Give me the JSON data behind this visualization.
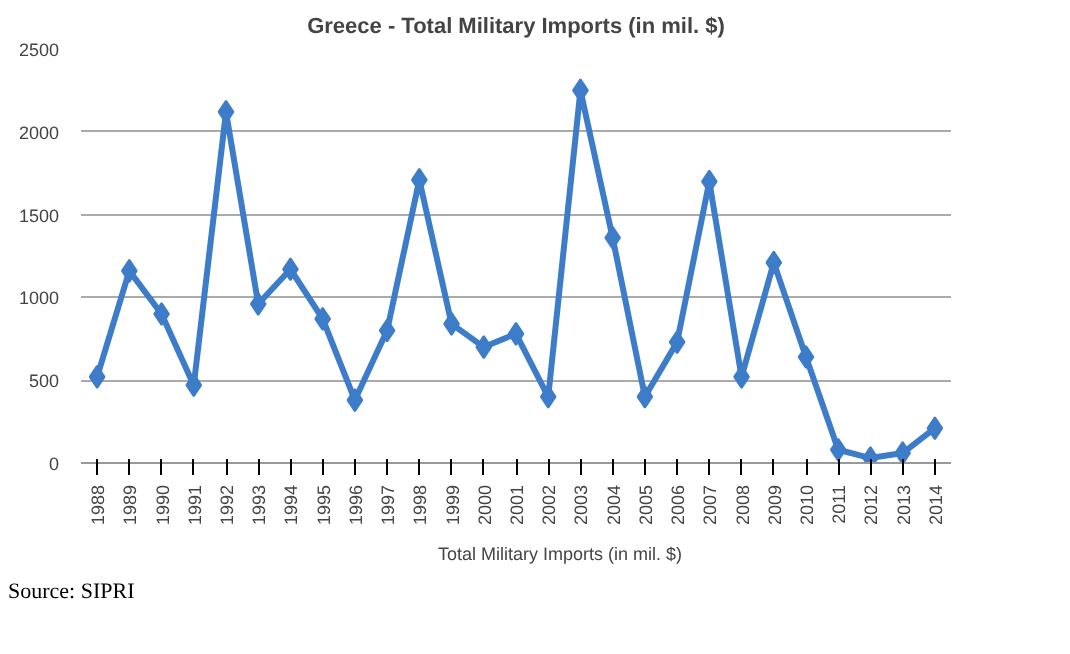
{
  "chart_data": {
    "type": "line",
    "title": "Greece - Total Military Imports (in mil. $)",
    "categories": [
      "1988",
      "1989",
      "1990",
      "1991",
      "1992",
      "1993",
      "1994",
      "1995",
      "1996",
      "1997",
      "1998",
      "1999",
      "2000",
      "2001",
      "2002",
      "2003",
      "2004",
      "2005",
      "2006",
      "2007",
      "2008",
      "2009",
      "2010",
      "2011",
      "2012",
      "2013",
      "2014"
    ],
    "series": [
      {
        "name": "Total Military Imports (in mil. $)",
        "color": "#3d7cc9",
        "values": [
          520,
          1160,
          900,
          470,
          2120,
          960,
          1170,
          870,
          380,
          800,
          1710,
          840,
          700,
          780,
          400,
          2250,
          1360,
          400,
          730,
          1700,
          520,
          1210,
          640,
          80,
          30,
          60,
          210
        ]
      }
    ],
    "ylim": [
      0,
      2500
    ],
    "yticks": [
      0,
      500,
      1000,
      1500,
      2000,
      2500
    ],
    "grid": "y",
    "legend": "bottom",
    "marker": "diamond",
    "line_style": "solid",
    "annotations": [
      "Source: SIPRI"
    ]
  }
}
